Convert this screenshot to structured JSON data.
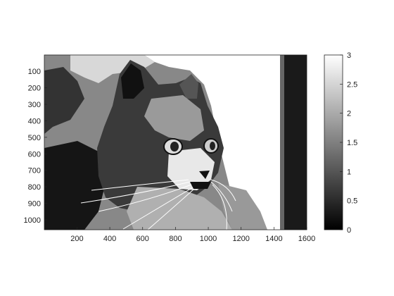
{
  "chart_data": {
    "type": "heatmap",
    "title": "",
    "xlabel": "",
    "ylabel": "",
    "image_subject": "posterized grayscale photo of a cat (4 intensity levels)",
    "levels": [
      0,
      1,
      2,
      3
    ],
    "xlim": [
      1,
      1600
    ],
    "ylim": [
      1,
      1060
    ],
    "y_axis_direction": "reversed",
    "x_ticks": [
      "200",
      "400",
      "600",
      "800",
      "1000",
      "1200",
      "1400",
      "1600"
    ],
    "x_tick_values": [
      200,
      400,
      600,
      800,
      1000,
      1200,
      1400,
      1600
    ],
    "y_ticks": [
      "100",
      "200",
      "300",
      "400",
      "500",
      "600",
      "700",
      "800",
      "900",
      "1000"
    ],
    "y_tick_values": [
      100,
      200,
      300,
      400,
      500,
      600,
      700,
      800,
      900,
      1000
    ],
    "colorbar": {
      "range": [
        0,
        3
      ],
      "colormap": "gray",
      "ticks": [
        "0",
        "0.5",
        "1",
        "1.5",
        "2",
        "2.5",
        "3"
      ],
      "tick_values": [
        0,
        0.5,
        1,
        1.5,
        2,
        2.5,
        3
      ]
    },
    "level_colors": [
      "#000000",
      "#555555",
      "#aaaaaa",
      "#ffffff"
    ]
  }
}
